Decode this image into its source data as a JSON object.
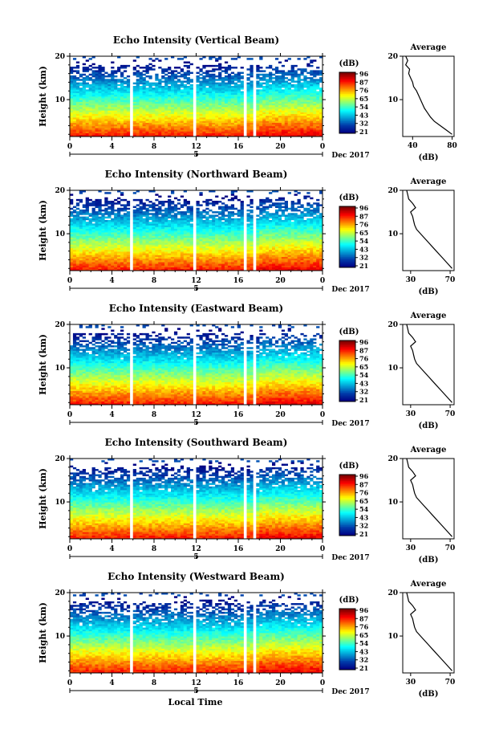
{
  "figure": {
    "xlabel": "Local Time",
    "date_label": "Dec 2017",
    "day_label": "5",
    "ylabel": "Height (km)",
    "colorbar_unit": "(dB)",
    "avg_title": "Average",
    "avg_xlabel": "(dB)"
  },
  "chart_data": [
    {
      "type": "heatmap",
      "title": "Echo Intensity (Vertical Beam)",
      "x_ticks": [
        "0",
        "4",
        "8",
        "12",
        "16",
        "20",
        "0"
      ],
      "x_range_hours": [
        0,
        24
      ],
      "y_ticks": [
        "20",
        "10"
      ],
      "y_range_km": [
        1.5,
        20
      ],
      "colorbar_ticks": [
        "96",
        "87",
        "76",
        "65",
        "54",
        "43",
        "32",
        "21"
      ],
      "gaps_hours": [
        [
          5.7,
          6.0
        ],
        [
          11.6,
          11.9
        ],
        [
          16.6,
          16.9
        ],
        [
          17.4,
          17.7
        ]
      ],
      "avg_profile": {
        "type": "line",
        "x_ticks": [
          "40",
          "80"
        ],
        "x_range": [
          30,
          82
        ],
        "heights": [
          2,
          3,
          4,
          5,
          6,
          7,
          8,
          9,
          10,
          11,
          12,
          13,
          14,
          15,
          16,
          17,
          18,
          19,
          20
        ],
        "values": [
          80,
          74,
          68,
          62,
          58,
          55,
          52,
          50,
          48,
          46,
          44,
          41,
          40,
          38,
          36,
          37,
          33,
          35,
          33
        ]
      }
    },
    {
      "type": "heatmap",
      "title": "Echo Intensity (Northward Beam)",
      "x_ticks": [
        "0",
        "4",
        "8",
        "12",
        "16",
        "20",
        "0"
      ],
      "x_range_hours": [
        0,
        24
      ],
      "y_ticks": [
        "20",
        "10"
      ],
      "y_range_km": [
        1.5,
        20
      ],
      "colorbar_ticks": [
        "96",
        "87",
        "76",
        "65",
        "54",
        "43",
        "32",
        "21"
      ],
      "gaps_hours": [
        [
          5.7,
          6.0
        ],
        [
          11.6,
          11.9
        ],
        [
          16.6,
          16.9
        ],
        [
          17.4,
          17.7
        ]
      ],
      "avg_profile": {
        "type": "line",
        "x_ticks": [
          "30",
          "70"
        ],
        "x_range": [
          22,
          74
        ],
        "heights": [
          2,
          3,
          4,
          5,
          6,
          7,
          8,
          9,
          10,
          11,
          12,
          13,
          14,
          15,
          16,
          17,
          18,
          19,
          20
        ],
        "values": [
          72,
          68,
          64,
          60,
          56,
          52,
          48,
          44,
          40,
          36,
          34,
          33,
          32,
          30,
          35,
          32,
          28,
          27,
          26
        ]
      }
    },
    {
      "type": "heatmap",
      "title": "Echo Intensity (Eastward Beam)",
      "x_ticks": [
        "0",
        "4",
        "8",
        "12",
        "16",
        "20",
        "0"
      ],
      "x_range_hours": [
        0,
        24
      ],
      "y_ticks": [
        "20",
        "10"
      ],
      "y_range_km": [
        1.5,
        20
      ],
      "colorbar_ticks": [
        "96",
        "87",
        "76",
        "65",
        "54",
        "43",
        "32",
        "21"
      ],
      "gaps_hours": [
        [
          5.7,
          6.0
        ],
        [
          11.6,
          11.9
        ],
        [
          16.6,
          16.9
        ],
        [
          17.4,
          17.7
        ]
      ],
      "avg_profile": {
        "type": "line",
        "x_ticks": [
          "30",
          "70"
        ],
        "x_range": [
          22,
          74
        ],
        "heights": [
          2,
          3,
          4,
          5,
          6,
          7,
          8,
          9,
          10,
          11,
          12,
          13,
          14,
          15,
          16,
          17,
          18,
          19,
          20
        ],
        "values": [
          72,
          68,
          64,
          60,
          56,
          52,
          48,
          44,
          40,
          36,
          34,
          33,
          32,
          30,
          35,
          32,
          28,
          27,
          26
        ]
      }
    },
    {
      "type": "heatmap",
      "title": "Echo Intensity (Southward Beam)",
      "x_ticks": [
        "0",
        "4",
        "8",
        "12",
        "16",
        "20",
        "0"
      ],
      "x_range_hours": [
        0,
        24
      ],
      "y_ticks": [
        "20",
        "10"
      ],
      "y_range_km": [
        1.5,
        20
      ],
      "colorbar_ticks": [
        "96",
        "87",
        "76",
        "65",
        "54",
        "43",
        "32",
        "21"
      ],
      "gaps_hours": [
        [
          5.7,
          6.0
        ],
        [
          11.6,
          11.9
        ],
        [
          16.6,
          16.9
        ],
        [
          17.4,
          17.7
        ]
      ],
      "avg_profile": {
        "type": "line",
        "x_ticks": [
          "30",
          "70"
        ],
        "x_range": [
          22,
          74
        ],
        "heights": [
          2,
          3,
          4,
          5,
          6,
          7,
          8,
          9,
          10,
          11,
          12,
          13,
          14,
          15,
          16,
          17,
          18,
          19,
          20
        ],
        "values": [
          72,
          68,
          64,
          60,
          56,
          52,
          48,
          44,
          40,
          36,
          34,
          33,
          32,
          30,
          35,
          32,
          28,
          27,
          26
        ]
      }
    },
    {
      "type": "heatmap",
      "title": "Echo Intensity (Westward Beam)",
      "x_ticks": [
        "0",
        "4",
        "8",
        "12",
        "16",
        "20",
        "0"
      ],
      "x_range_hours": [
        0,
        24
      ],
      "y_ticks": [
        "20",
        "10"
      ],
      "y_range_km": [
        1.5,
        20
      ],
      "colorbar_ticks": [
        "96",
        "87",
        "76",
        "65",
        "54",
        "43",
        "32",
        "21"
      ],
      "gaps_hours": [
        [
          5.7,
          6.0
        ],
        [
          11.6,
          11.9
        ],
        [
          16.6,
          16.9
        ],
        [
          17.4,
          17.7
        ]
      ],
      "avg_profile": {
        "type": "line",
        "x_ticks": [
          "30",
          "70"
        ],
        "x_range": [
          22,
          74
        ],
        "heights": [
          2,
          3,
          4,
          5,
          6,
          7,
          8,
          9,
          10,
          11,
          12,
          13,
          14,
          15,
          16,
          17,
          18,
          19,
          20
        ],
        "values": [
          72,
          68,
          64,
          60,
          56,
          52,
          48,
          44,
          40,
          36,
          34,
          33,
          32,
          30,
          35,
          32,
          28,
          27,
          26
        ]
      }
    }
  ]
}
